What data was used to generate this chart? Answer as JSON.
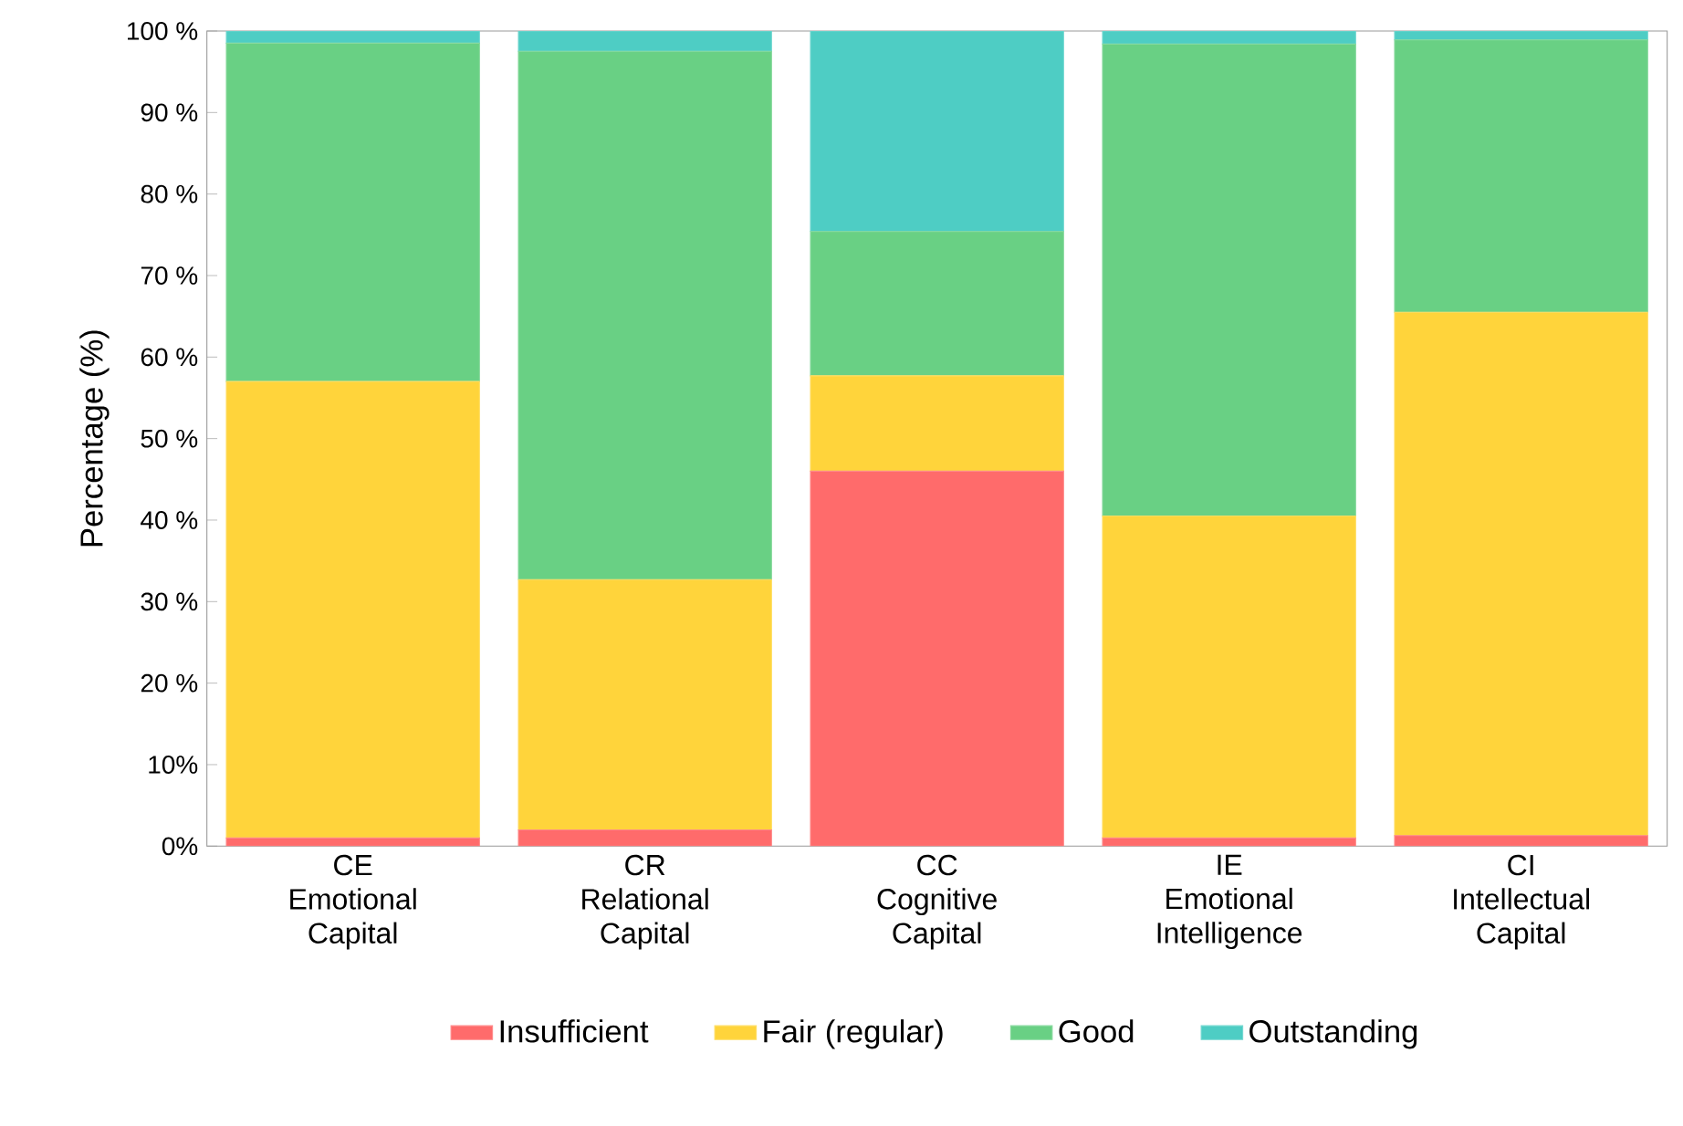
{
  "chart_data": {
    "type": "bar",
    "stacked": true,
    "ylabel": "Percentage (%)",
    "categories": [
      "CE Emotional Capital",
      "CR Relational Capital",
      "CC Cognitive Capital",
      "IE Emotional Intelligence",
      "CI Intellectual Capital"
    ],
    "series": [
      {
        "name": "Insufficient",
        "color": "#ff6b6b",
        "values": [
          1,
          2,
          46,
          1,
          1.3
        ]
      },
      {
        "name": "Fair (regular)",
        "color": "#ffd43b",
        "values": [
          56,
          30.7,
          11.7,
          39.5,
          64.2
        ]
      },
      {
        "name": "Good",
        "color": "#69d084",
        "values": [
          41.5,
          64.8,
          17.7,
          57.9,
          33.4
        ]
      },
      {
        "name": "Outstanding",
        "color": "#4ecdc4",
        "values": [
          1.5,
          2.5,
          24.6,
          1.6,
          1.1
        ]
      }
    ],
    "ylim": [
      0,
      100
    ],
    "yticks": [
      {
        "value": 0,
        "label": "0%"
      },
      {
        "value": 10,
        "label": "10%"
      },
      {
        "value": 20,
        "label": "20 %"
      },
      {
        "value": 30,
        "label": "30 %"
      },
      {
        "value": 40,
        "label": "40 %"
      },
      {
        "value": 50,
        "label": "50 %"
      },
      {
        "value": 60,
        "label": "60 %"
      },
      {
        "value": 70,
        "label": "70 %"
      },
      {
        "value": 80,
        "label": "80 %"
      },
      {
        "value": 90,
        "label": "90 %"
      },
      {
        "value": 100,
        "label": "100 %"
      }
    ],
    "legend": "bottom"
  }
}
